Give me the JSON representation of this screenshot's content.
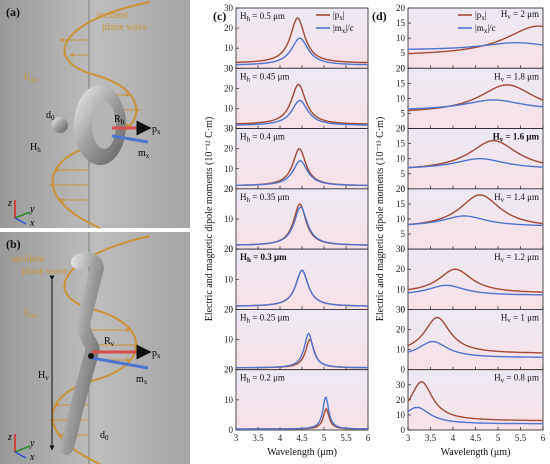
{
  "colors": {
    "px": "#a24a35",
    "mx": "#4f75cf",
    "bg_bottom": "#f7e1e6",
    "bg_top": "#ece9f4",
    "helix": "#c9933a"
  },
  "panel_a": {
    "label": "(a)",
    "incident1": "incident",
    "incident2": "plane wave",
    "einc": "E",
    "einc_sub": "inc",
    "d0": "d",
    "d0_sub": "0",
    "hh": "H",
    "hh_sub": "h",
    "rh": "R",
    "rh_sub": "h",
    "px": "p",
    "px_sub": "x",
    "mx": "m",
    "mx_sub": "x",
    "axis_z": "z",
    "axis_y": "y",
    "axis_x": "x"
  },
  "panel_b": {
    "label": "(b)",
    "incident1": "incident",
    "incident2": "plane wave",
    "einc": "E",
    "einc_sub": "inc",
    "hv": "H",
    "hv_sub": "v",
    "rv": "R",
    "rv_sub": "v",
    "px": "p",
    "px_sub": "x",
    "mx": "m",
    "mx_sub": "x",
    "d0": "d",
    "d0_sub": "0",
    "axis_z": "z",
    "axis_y": "y",
    "axis_x": "x"
  },
  "chart_data": [
    {
      "type": "line",
      "panel_label": "(c)",
      "xlabel": "Wavelength (μm)",
      "xlim": [
        3,
        6
      ],
      "x_ticks": [
        "3",
        "3.5",
        "4",
        "4.5",
        "5",
        "5.5",
        "6"
      ],
      "ylabel_shared": "Electric and magnetic dipole moments (10⁻¹² C·m)",
      "legend": [
        "|px|",
        "|mx|/c"
      ],
      "subplots": [
        {
          "label": "H_h = 0.5 μm",
          "label_bold": false,
          "ylim": [
            0,
            30
          ],
          "y_ticks": [
            "0",
            "10",
            "20",
            "30"
          ],
          "series": [
            {
              "name": "|px|",
              "peak_x": 4.4,
              "peak_y": 25,
              "width": 0.2,
              "base": 2.5
            },
            {
              "name": "|mx|/c",
              "peak_x": 4.45,
              "peak_y": 15,
              "width": 0.23,
              "base": 1.5
            }
          ]
        },
        {
          "label": "H_h = 0.45 μm",
          "label_bold": false,
          "ylim": [
            0,
            30
          ],
          "y_ticks": [
            "0",
            "10",
            "20",
            "30"
          ],
          "series": [
            {
              "name": "|px|",
              "peak_x": 4.42,
              "peak_y": 22,
              "width": 0.2,
              "base": 2
            },
            {
              "name": "|mx|/c",
              "peak_x": 4.45,
              "peak_y": 14,
              "width": 0.22,
              "base": 1.5
            }
          ]
        },
        {
          "label": "H_h = 0.4 μm",
          "label_bold": false,
          "ylim": [
            0,
            30
          ],
          "y_ticks": [
            "0",
            "10",
            "20",
            "30"
          ],
          "series": [
            {
              "name": "|px|",
              "peak_x": 4.44,
              "peak_y": 20,
              "width": 0.18,
              "base": 1.5
            },
            {
              "name": "|mx|/c",
              "peak_x": 4.46,
              "peak_y": 14,
              "width": 0.2,
              "base": 1.5
            }
          ]
        },
        {
          "label": "H_h = 0.35 μm",
          "label_bold": false,
          "ylim": [
            0,
            20
          ],
          "y_ticks": [
            "0",
            "10",
            "20"
          ],
          "series": [
            {
              "name": "|px|",
              "peak_x": 4.45,
              "peak_y": 15,
              "width": 0.17,
              "base": 1.2
            },
            {
              "name": "|mx|/c",
              "peak_x": 4.47,
              "peak_y": 14,
              "width": 0.18,
              "base": 1.2
            }
          ]
        },
        {
          "label": "H_h = 0.3 μm",
          "label_bold": true,
          "ylim": [
            0,
            20
          ],
          "y_ticks": [
            "0",
            "10",
            "20"
          ],
          "series": [
            {
              "name": "|px|",
              "peak_x": 4.5,
              "peak_y": 13,
              "width": 0.17,
              "base": 1
            },
            {
              "name": "|mx|/c",
              "peak_x": 4.5,
              "peak_y": 13,
              "width": 0.17,
              "base": 1
            }
          ]
        },
        {
          "label": "H_h = 0.25 μm",
          "label_bold": false,
          "ylim": [
            0,
            20
          ],
          "y_ticks": [
            "0",
            "10",
            "20"
          ],
          "series": [
            {
              "name": "|px|",
              "peak_x": 4.68,
              "peak_y": 10,
              "width": 0.12,
              "base": 0.6
            },
            {
              "name": "|mx|/c",
              "peak_x": 4.65,
              "peak_y": 12,
              "width": 0.12,
              "base": 0.6
            }
          ]
        },
        {
          "label": "H_h = 0.2 μm",
          "label_bold": false,
          "ylim": [
            0,
            20
          ],
          "y_ticks": [
            "0",
            "10",
            "20"
          ],
          "series": [
            {
              "name": "|px|",
              "peak_x": 5.05,
              "peak_y": 7,
              "width": 0.08,
              "base": 0.3
            },
            {
              "name": "|mx|/c",
              "peak_x": 5.04,
              "peak_y": 11,
              "width": 0.08,
              "base": 0.3
            }
          ]
        }
      ]
    },
    {
      "type": "line",
      "panel_label": "(d)",
      "xlabel": "Wavelength (μm)",
      "xlim": [
        3,
        6
      ],
      "x_ticks": [
        "3",
        "3.5",
        "4",
        "4.5",
        "5",
        "5.5",
        "6"
      ],
      "ylabel_shared": "Electric and magnetic dipole moments (10⁻¹³ C·m)",
      "legend": [
        "|px|",
        "|mx|/c"
      ],
      "subplots": [
        {
          "label": "H_v = 2 μm",
          "label_bold": false,
          "ylim": [
            0,
            20
          ],
          "y_ticks": [
            "0",
            "5",
            "10",
            "15",
            "20"
          ],
          "series": [
            {
              "name": "|px|",
              "peak_x": 5.9,
              "peak_y": 14,
              "width": 0.9,
              "base": 4
            },
            {
              "name": "|mx|/c",
              "peak_x": 5.4,
              "peak_y": 8.5,
              "width": 0.9,
              "base": 6
            }
          ]
        },
        {
          "label": "H_v = 1.8 μm",
          "label_bold": false,
          "ylim": [
            0,
            20
          ],
          "y_ticks": [
            "0",
            "5",
            "10",
            "15",
            "20"
          ],
          "series": [
            {
              "name": "|px|",
              "peak_x": 5.2,
              "peak_y": 14.5,
              "width": 0.75,
              "base": 5
            },
            {
              "name": "|mx|/c",
              "peak_x": 4.9,
              "peak_y": 9.5,
              "width": 0.8,
              "base": 6
            }
          ]
        },
        {
          "label": "H_v = 1.6 μm",
          "label_bold": true,
          "ylim": [
            0,
            20
          ],
          "y_ticks": [
            "0",
            "5",
            "10",
            "15",
            "20"
          ],
          "series": [
            {
              "name": "|px|",
              "peak_x": 4.9,
              "peak_y": 16,
              "width": 0.65,
              "base": 6
            },
            {
              "name": "|mx|/c",
              "peak_x": 4.6,
              "peak_y": 10,
              "width": 0.7,
              "base": 6.5
            }
          ]
        },
        {
          "label": "H_v = 1.4 μm",
          "label_bold": false,
          "ylim": [
            0,
            20
          ],
          "y_ticks": [
            "0",
            "5",
            "10",
            "15",
            "20"
          ],
          "series": [
            {
              "name": "|px|",
              "peak_x": 4.6,
              "peak_y": 18,
              "width": 0.55,
              "base": 7
            },
            {
              "name": "|mx|/c",
              "peak_x": 4.25,
              "peak_y": 11,
              "width": 0.6,
              "base": 7.5
            }
          ]
        },
        {
          "label": "H_v = 1.2 μm",
          "label_bold": false,
          "ylim": [
            0,
            30
          ],
          "y_ticks": [
            "0",
            "10",
            "20",
            "30"
          ],
          "series": [
            {
              "name": "|px|",
              "peak_x": 4.05,
              "peak_y": 20,
              "width": 0.45,
              "base": 8
            },
            {
              "name": "|mx|/c",
              "peak_x": 3.85,
              "peak_y": 12,
              "width": 0.5,
              "base": 7
            }
          ]
        },
        {
          "label": "H_v = 1 μm",
          "label_bold": false,
          "ylim": [
            0,
            30
          ],
          "y_ticks": [
            "0",
            "10",
            "20",
            "30"
          ],
          "series": [
            {
              "name": "|px|",
              "peak_x": 3.65,
              "peak_y": 26,
              "width": 0.35,
              "base": 8
            },
            {
              "name": "|mx|/c",
              "peak_x": 3.55,
              "peak_y": 14,
              "width": 0.4,
              "base": 6
            }
          ]
        },
        {
          "label": "H_v = 0.8 μm",
          "label_bold": false,
          "ylim": [
            0,
            40
          ],
          "y_ticks": [
            "0",
            "10",
            "20",
            "30"
          ],
          "series": [
            {
              "name": "|px|",
              "peak_x": 3.3,
              "peak_y": 32,
              "width": 0.3,
              "base": 6
            },
            {
              "name": "|mx|/c",
              "peak_x": 3.2,
              "peak_y": 15,
              "width": 0.35,
              "base": 4
            }
          ]
        }
      ]
    }
  ]
}
